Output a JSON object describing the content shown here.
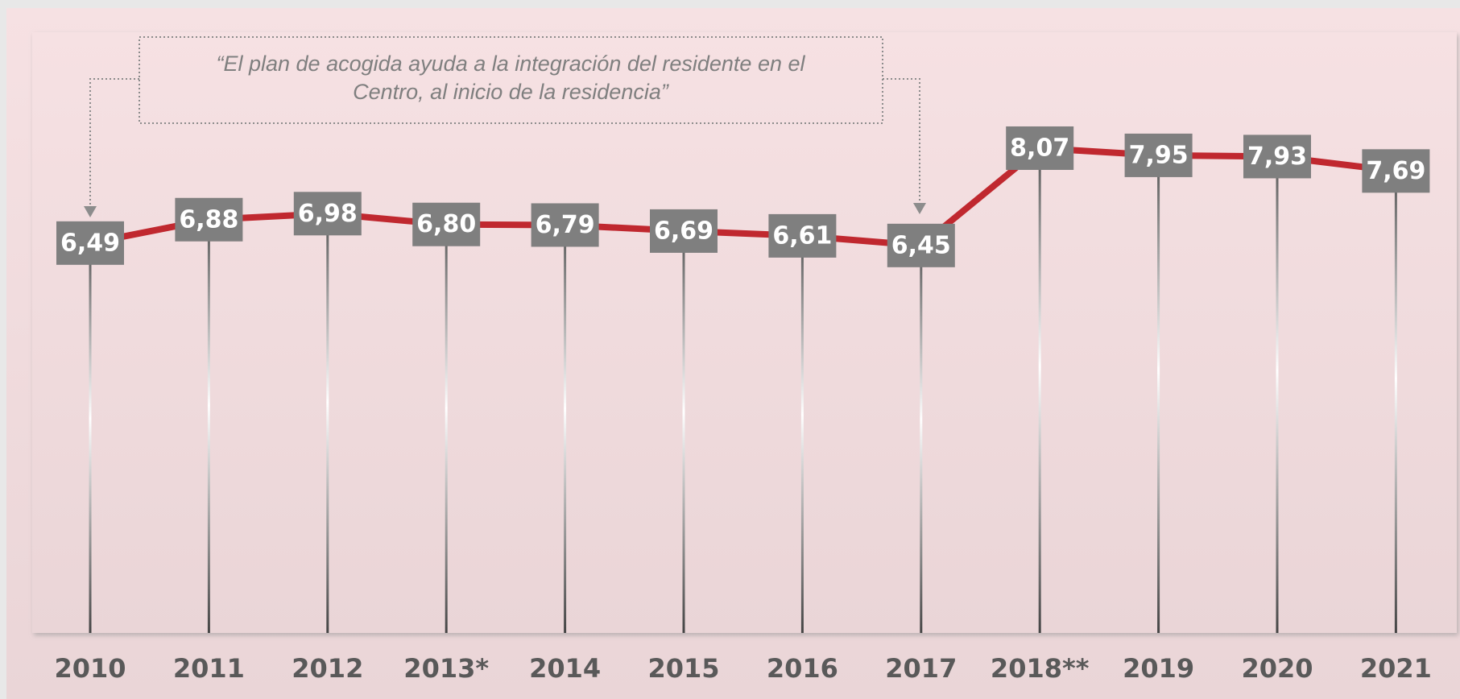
{
  "chart_data": {
    "type": "line",
    "annotations": [
      "“El plan de acogida ayuda a la integración del residente en el",
      "Centro, al inicio de la residencia”"
    ],
    "categories": [
      "2010",
      "2011",
      "2012",
      "2013*",
      "2014",
      "2015",
      "2016",
      "2017",
      "2018**",
      "2019",
      "2020",
      "2021"
    ],
    "values": [
      6.49,
      6.88,
      6.98,
      6.8,
      6.79,
      6.69,
      6.61,
      6.45,
      8.07,
      7.95,
      7.93,
      7.69
    ],
    "value_labels": [
      "6,49",
      "6,88",
      "6,98",
      "6,80",
      "6,79",
      "6,69",
      "6,61",
      "6,45",
      "8,07",
      "7,95",
      "7,93",
      "7,69"
    ],
    "color": "#c0282f",
    "label_color": "#7f7f7f",
    "ylim": [
      0,
      10
    ]
  }
}
